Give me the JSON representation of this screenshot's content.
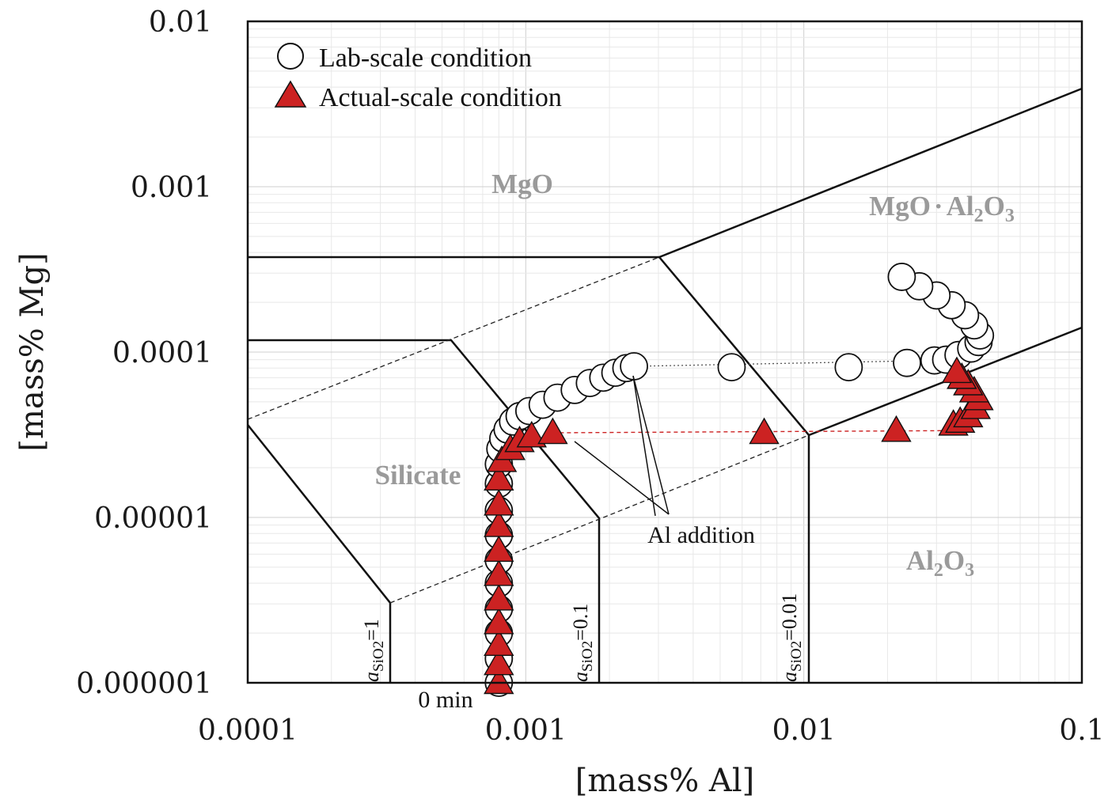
{
  "chart_data": {
    "type": "scatter",
    "title": "",
    "xlabel": "[mass% Al]",
    "ylabel": "[mass% Mg]",
    "x_scale": "log",
    "y_scale": "log",
    "xlim": [
      0.0001,
      0.1
    ],
    "ylim": [
      1e-06,
      0.01
    ],
    "x_ticks": [
      "0.0001",
      "0.001",
      "0.01",
      "0.1"
    ],
    "y_ticks": [
      "0.000001",
      "0.00001",
      "0.0001",
      "0.001",
      "0.01"
    ],
    "grid": true,
    "legend_position": "top-left",
    "series": [
      {
        "name": "Lab-scale condition",
        "marker": "open-circle",
        "color": "#000000",
        "x": [
          0.0008,
          0.0008,
          0.0008,
          0.0008,
          0.0008,
          0.0008,
          0.0008,
          0.0008,
          0.0008,
          0.0008,
          0.00081,
          0.00083,
          0.00086,
          0.0009,
          0.00095,
          0.00103,
          0.00115,
          0.0013,
          0.0015,
          0.0017,
          0.0019,
          0.0021,
          0.0023,
          0.00245,
          0.0055,
          0.0145,
          0.0235,
          0.0295,
          0.0325,
          0.036,
          0.04,
          0.0425,
          0.043,
          0.041,
          0.038,
          0.034,
          0.03,
          0.026,
          0.0225
        ],
        "y": [
          1e-06,
          1.4e-06,
          2e-06,
          2.8e-06,
          4e-06,
          5.5e-06,
          7.8e-06,
          1.1e-05,
          1.6e-05,
          2.1e-05,
          2.6e-05,
          3e-05,
          3.4e-05,
          3.8e-05,
          4.1e-05,
          4.4e-05,
          4.8e-05,
          5.3e-05,
          5.9e-05,
          6.5e-05,
          7e-05,
          7.5e-05,
          8e-05,
          8.2e-05,
          8.1e-05,
          8.1e-05,
          8.6e-05,
          8.9e-05,
          9e-05,
          9.6e-05,
          0.000105,
          0.000115,
          0.000126,
          0.000145,
          0.000167,
          0.000192,
          0.00022,
          0.00025,
          0.000285
        ]
      },
      {
        "name": "Actual-scale condition",
        "marker": "filled-triangle",
        "color": "#cc2222",
        "x": [
          0.0008,
          0.0008,
          0.0008,
          0.0008,
          0.0008,
          0.0008,
          0.0008,
          0.0008,
          0.0008,
          0.0008,
          0.00082,
          0.00088,
          0.00095,
          0.00105,
          0.00125,
          0.0072,
          0.0215,
          0.0345,
          0.0365,
          0.039,
          0.0415,
          0.0425,
          0.041,
          0.039,
          0.037,
          0.0355
        ],
        "y": [
          1e-06,
          1.3e-06,
          1.7e-06,
          2.3e-06,
          3.2e-06,
          4.5e-06,
          6.3e-06,
          8.9e-06,
          1.2e-05,
          1.7e-05,
          2.2e-05,
          2.6e-05,
          2.9e-05,
          3.1e-05,
          3.25e-05,
          3.25e-05,
          3.35e-05,
          3.65e-05,
          3.8e-05,
          4.1e-05,
          4.6e-05,
          5.2e-05,
          5.8e-05,
          6.4e-05,
          7e-05,
          7.6e-05
        ]
      }
    ],
    "annotations": {
      "regions": [
        "MgO",
        "Silicate"
      ],
      "region_compound": {
        "main": "MgO",
        "dot": "·",
        "al": "Al",
        "sub1": "2",
        "o": "O",
        "sub2": "3"
      },
      "region_al2o3": {
        "al": "Al",
        "sub1": "2",
        "o": "O",
        "sub2": "3"
      },
      "activity": {
        "a": "a",
        "sub": "SiO2",
        "labels": [
          "=1",
          "=0.1",
          "=0.01"
        ]
      },
      "al_addition": "Al addition",
      "zero_min": "0 min"
    },
    "colors": {
      "red": "#cc2222",
      "region_text": "#9a9a9a",
      "grid": "#d6d6d6"
    }
  }
}
